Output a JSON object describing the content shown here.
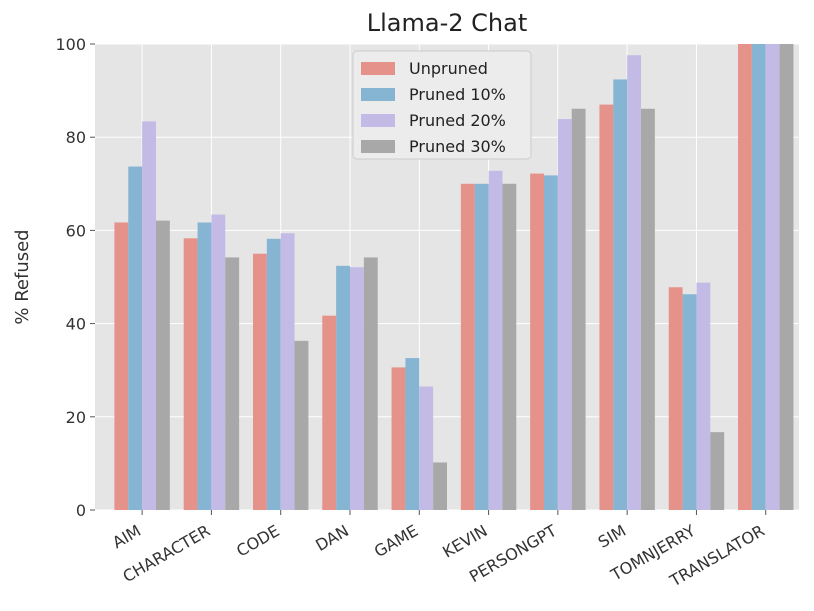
{
  "chart_data": {
    "type": "bar",
    "title": "Llama-2 Chat",
    "xlabel": "",
    "ylabel": "% Refused",
    "ylim": [
      0,
      100
    ],
    "yticks": [
      0,
      20,
      40,
      60,
      80,
      100
    ],
    "grid": true,
    "legend_position": "top-center",
    "categories": [
      "AIM",
      "CHARACTER",
      "CODE",
      "DAN",
      "GAME",
      "KEVIN",
      "PERSONGPT",
      "SIM",
      "TOMNJERRY",
      "TRANSLATOR"
    ],
    "series": [
      {
        "name": "Unpruned",
        "color": "#e5928a",
        "values": [
          61.7,
          58.3,
          55.0,
          41.7,
          30.6,
          70.0,
          72.2,
          87.0,
          47.8,
          100
        ]
      },
      {
        "name": "Pruned 10%",
        "color": "#86b5d4",
        "values": [
          73.7,
          61.7,
          58.2,
          52.4,
          32.6,
          70.0,
          71.8,
          92.4,
          46.3,
          100
        ]
      },
      {
        "name": "Pruned 20%",
        "color": "#c3bbe6",
        "values": [
          83.4,
          63.4,
          59.4,
          52.1,
          26.5,
          72.8,
          83.9,
          97.6,
          48.8,
          100
        ]
      },
      {
        "name": "Pruned 30%",
        "color": "#a8a8a8",
        "values": [
          62.1,
          54.2,
          36.3,
          54.2,
          10.2,
          70.0,
          86.1,
          86.1,
          16.7,
          100
        ]
      }
    ]
  }
}
